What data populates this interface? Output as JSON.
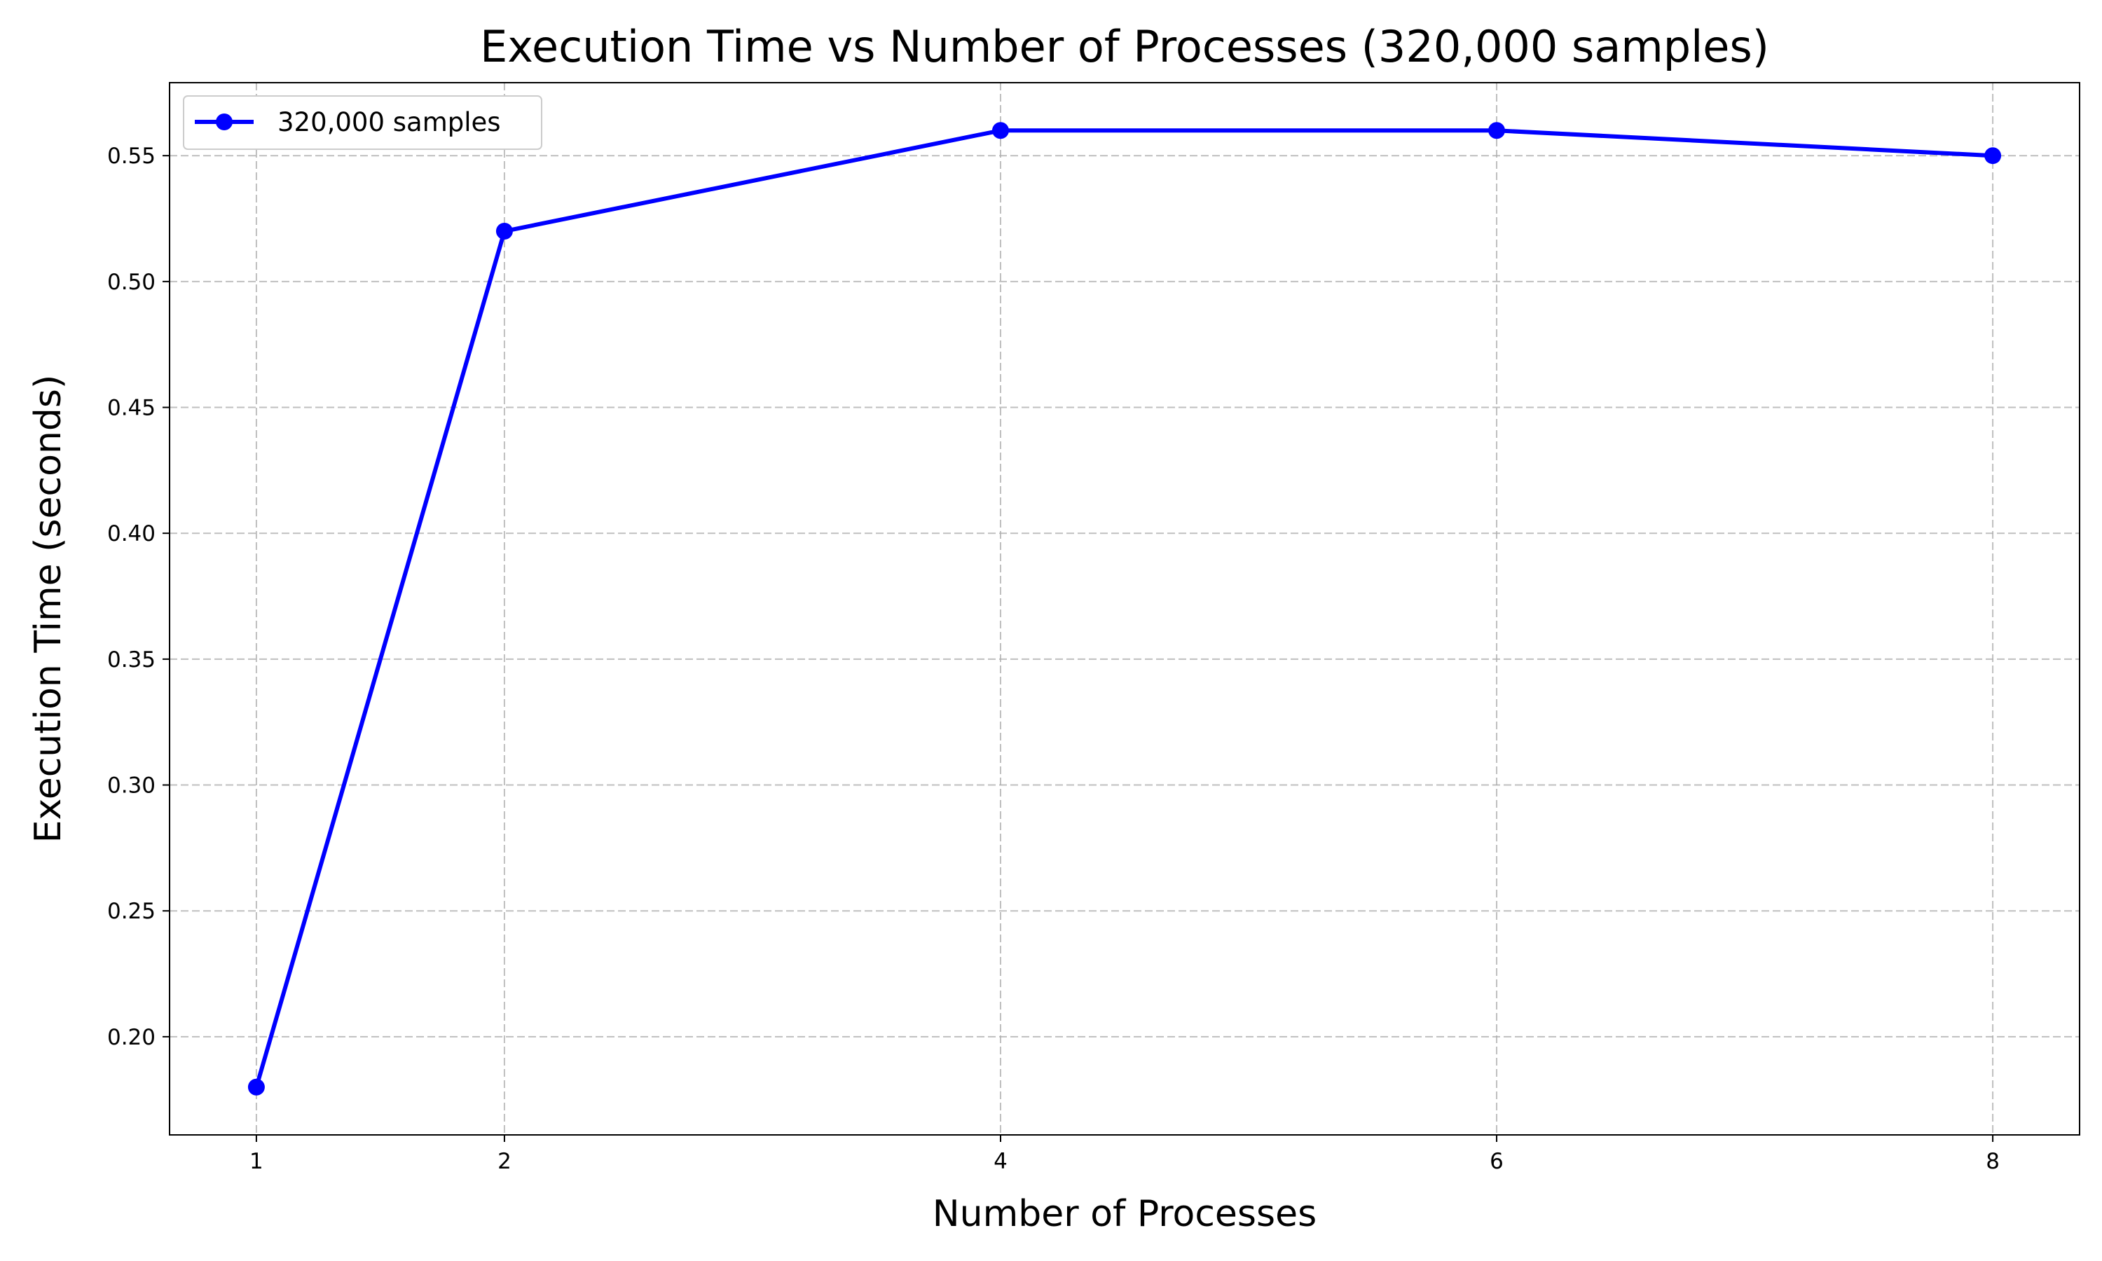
{
  "chart_data": {
    "type": "line",
    "title": "Execution Time vs Number of Processes (320,000 samples)",
    "xlabel": "Number of Processes",
    "ylabel": "Execution Time (seconds)",
    "x": [
      1,
      2,
      4,
      6,
      8
    ],
    "xticks": [
      "1",
      "2",
      "4",
      "6",
      "8"
    ],
    "yticks": [
      "0.20",
      "0.25",
      "0.30",
      "0.35",
      "0.40",
      "0.45",
      "0.50",
      "0.55"
    ],
    "xlim": [
      0.65,
      8.35
    ],
    "ylim": [
      0.161,
      0.579
    ],
    "grid": true,
    "legend_position": "top-left",
    "series": [
      {
        "name": "320,000 samples",
        "color": "#0000ff",
        "marker": "circle",
        "values": [
          0.18,
          0.52,
          0.56,
          0.56,
          0.55
        ]
      }
    ]
  }
}
